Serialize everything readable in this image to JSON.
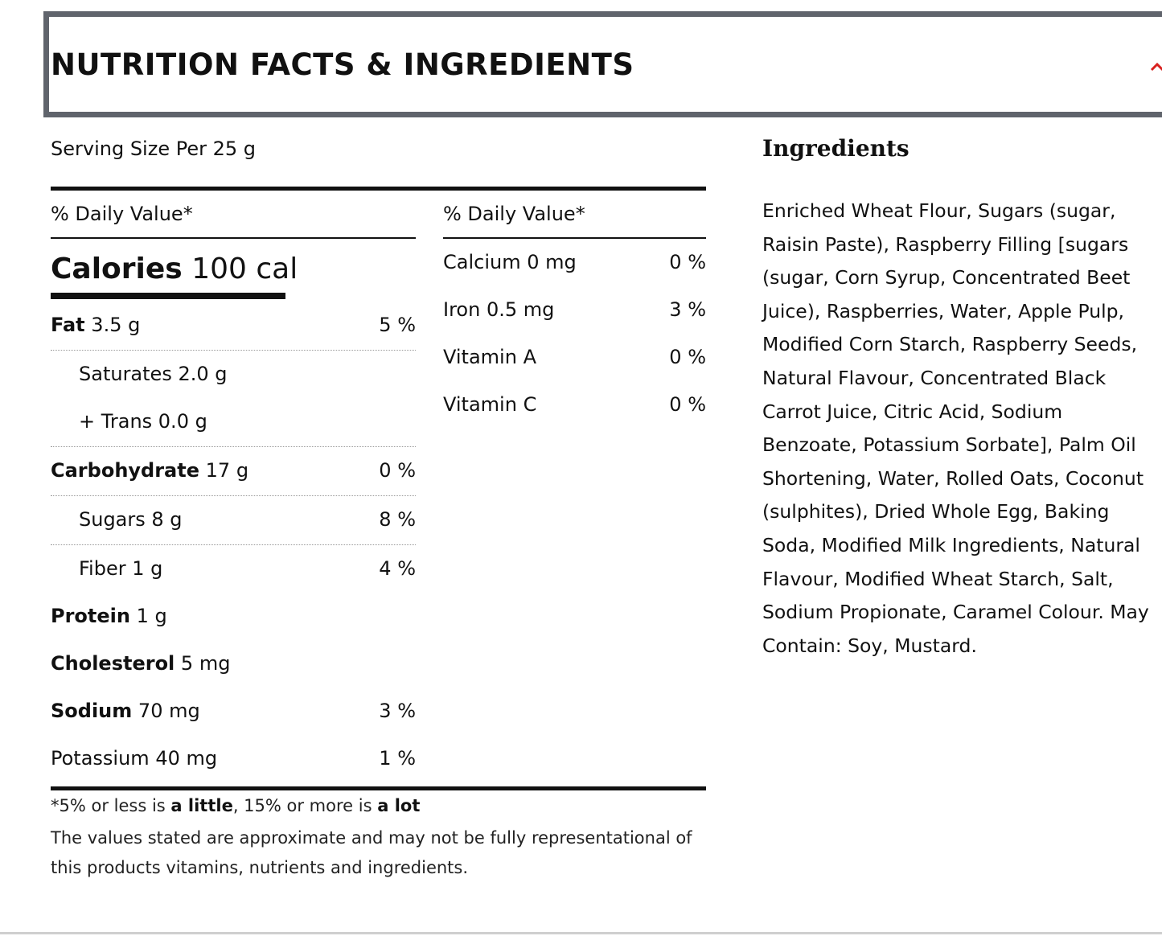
{
  "header": {
    "title": "NUTRITION FACTS & INGREDIENTS",
    "toggle_icon": "chevron-up-icon",
    "accent_color": "#d9211f",
    "border_color": "#60646c"
  },
  "serving": {
    "text": "Serving Size Per 25 g"
  },
  "left_column": {
    "dv_header": "% Daily Value*",
    "calories": {
      "label": "Calories",
      "value": "100 cal"
    },
    "rows": {
      "fat": {
        "label": "Fat",
        "value": "3.5 g",
        "pct": "5 %"
      },
      "saturates": {
        "label": "Saturates 2.0 g",
        "pct": ""
      },
      "trans": {
        "label": "+ Trans 0.0 g"
      },
      "carbohydrate": {
        "label": "Carbohydrate",
        "value": "17 g",
        "pct": "0 %"
      },
      "sugars": {
        "label": "Sugars 8 g",
        "pct": "8 %"
      },
      "fiber": {
        "label": "Fiber 1 g",
        "pct": "4 %"
      },
      "protein": {
        "label": "Protein",
        "value": "1 g"
      },
      "cholesterol": {
        "label": "Cholesterol",
        "value": "5 mg"
      },
      "sodium": {
        "label": "Sodium",
        "value": "70 mg",
        "pct": "3 %"
      },
      "potassium": {
        "label": "Potassium 40 mg",
        "pct": "1 %"
      }
    }
  },
  "right_column": {
    "dv_header": "% Daily Value*",
    "rows": {
      "calcium": {
        "label": "Calcium 0 mg",
        "pct": "0 %"
      },
      "iron": {
        "label": "Iron 0.5 mg",
        "pct": "3 %"
      },
      "vitamin_a": {
        "label": "Vitamin A",
        "pct": "0 %"
      },
      "vitamin_c": {
        "label": "Vitamin C",
        "pct": "0 %"
      }
    }
  },
  "footnote": {
    "part1": "*5% or less is ",
    "bold1": "a little",
    "part2": ", 15% or more is ",
    "bold2": "a lot",
    "disclaimer": "The values stated are approximate and may not be fully representational of this products vitamins, nutrients and ingredients."
  },
  "ingredients": {
    "title": "Ingredients",
    "text": "Enriched Wheat Flour, Sugars (sugar, Raisin Paste), Raspberry Filling [sugars (sugar, Corn Syrup, Concentrated Beet Juice), Raspberries, Water, Apple Pulp, Modified Corn Starch, Raspberry Seeds, Natural Flavour, Concentrated Black Carrot Juice, Citric Acid, Sodium Benzoate, Potassium Sorbate], Palm Oil Shortening, Water, Rolled Oats, Coconut (sulphites), Dried Whole Egg, Baking Soda, Modified Milk Ingredients, Natural Flavour, Modified Wheat Starch, Salt, Sodium Propionate, Caramel Colour. May Contain: Soy, Mustard."
  }
}
